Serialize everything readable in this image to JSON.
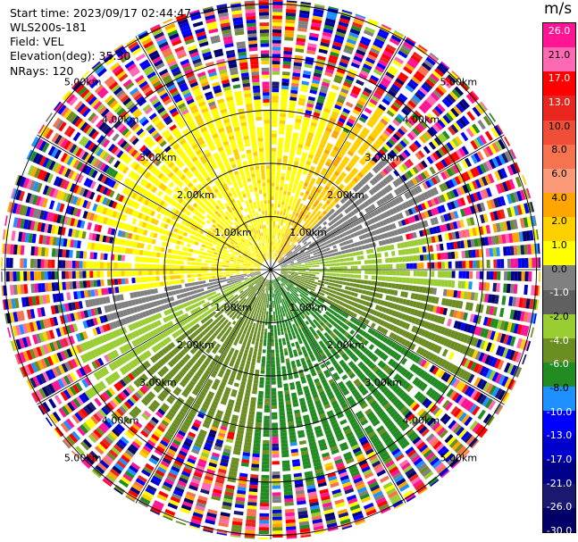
{
  "header": {
    "start_time": "Start time: 2023/09/17 02:44:47",
    "instrument": "WLS200s-181",
    "field": "Field: VEL",
    "elevation": "Elevation(deg): 35.30",
    "nrays": "NRays: 120"
  },
  "ppi": {
    "n_rays": 120,
    "ring_labels": [
      "1.00km",
      "2.00km",
      "3.00km",
      "4.00km",
      "5.00km"
    ],
    "spoke_angles_deg": [
      0,
      30,
      60,
      90,
      120,
      150,
      180,
      210,
      240,
      270,
      300,
      330
    ]
  },
  "colorbar": {
    "unit": "m/s",
    "ticks": [
      "26.0",
      "21.0",
      "17.0",
      "13.0",
      "10.0",
      "8.0",
      "6.0",
      "4.0",
      "2.0",
      "1.0",
      "0.0",
      "-1.0",
      "-2.0",
      "-4.0",
      "-6.0",
      "-8.0",
      "-10.0",
      "-13.0",
      "-17.0",
      "-21.0",
      "-26.0",
      "-30.0"
    ],
    "colors": [
      "#ff1493",
      "#ff69b4",
      "#ff0000",
      "#e8261f",
      "#f04e36",
      "#f5734f",
      "#fa9a78",
      "#ffa500",
      "#ffd000",
      "#ffff00",
      "#808080",
      "#606060",
      "#9acd32",
      "#6b8e23",
      "#228b22",
      "#1e90ff",
      "#0000ff",
      "#0000cd",
      "#00008b",
      "#191970",
      "#000066"
    ]
  }
}
